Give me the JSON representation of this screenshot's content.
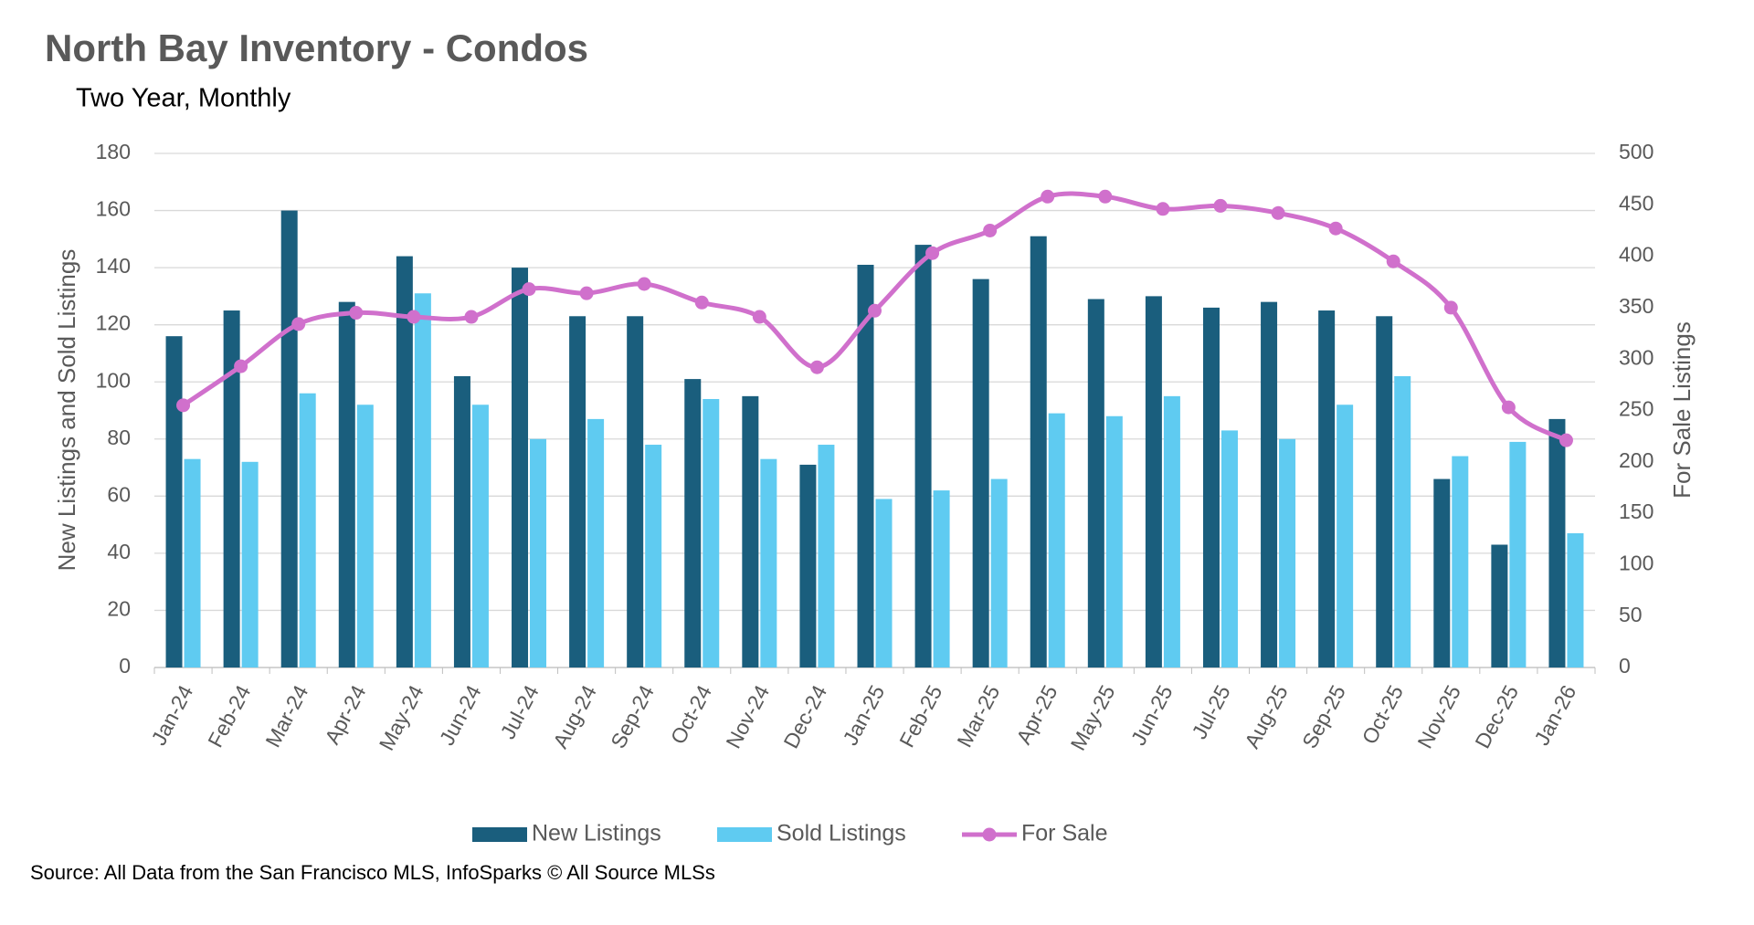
{
  "chart_data": {
    "type": "bar_line",
    "title": "North Bay Inventory - Condos",
    "subtitle": "Two Year, Monthly",
    "ylabel": "New Listings and Sold Listings",
    "y2label": "For Sale Listings",
    "source": "Source: All Data from the San Francisco MLS, InfoSparks © All Source MLSs",
    "categories": [
      "Jan-24",
      "Feb-24",
      "Mar-24",
      "Apr-24",
      "May-24",
      "Jun-24",
      "Jul-24",
      "Aug-24",
      "Sep-24",
      "Oct-24",
      "Nov-24",
      "Dec-24",
      "Jan-25",
      "Feb-25",
      "Mar-25",
      "Apr-25",
      "May-25",
      "Jun-25",
      "Jul-25",
      "Aug-25",
      "Sep-25",
      "Oct-25",
      "Nov-25",
      "Dec-25",
      "Jan-26"
    ],
    "series": [
      {
        "name": "New Listings",
        "type": "bar",
        "color": "#1a5e7d",
        "values": [
          116,
          125,
          160,
          128,
          144,
          102,
          140,
          123,
          123,
          101,
          95,
          71,
          141,
          148,
          136,
          151,
          129,
          130,
          126,
          128,
          125,
          123,
          66,
          43,
          87
        ]
      },
      {
        "name": "Sold Listings",
        "type": "bar",
        "color": "#5fcbf1",
        "values": [
          73,
          72,
          96,
          92,
          131,
          92,
          80,
          87,
          78,
          94,
          73,
          78,
          59,
          62,
          66,
          89,
          88,
          95,
          83,
          80,
          92,
          102,
          74,
          79,
          47
        ]
      },
      {
        "name": "For Sale",
        "type": "line",
        "axis": "y2",
        "color": "#d070cc",
        "values": [
          255,
          293,
          334,
          345,
          341,
          341,
          368,
          364,
          373,
          355,
          341,
          292,
          347,
          403,
          425,
          458,
          458,
          446,
          449,
          442,
          427,
          395,
          350,
          253,
          221
        ]
      }
    ],
    "ylim": [
      0,
      180
    ],
    "yticks": [
      0,
      20,
      40,
      60,
      80,
      100,
      120,
      140,
      160,
      180
    ],
    "y2lim": [
      0,
      500
    ],
    "y2ticks": [
      0,
      50,
      100,
      150,
      200,
      250,
      300,
      350,
      400,
      450,
      500
    ],
    "grid": true,
    "legend": "bottom"
  }
}
